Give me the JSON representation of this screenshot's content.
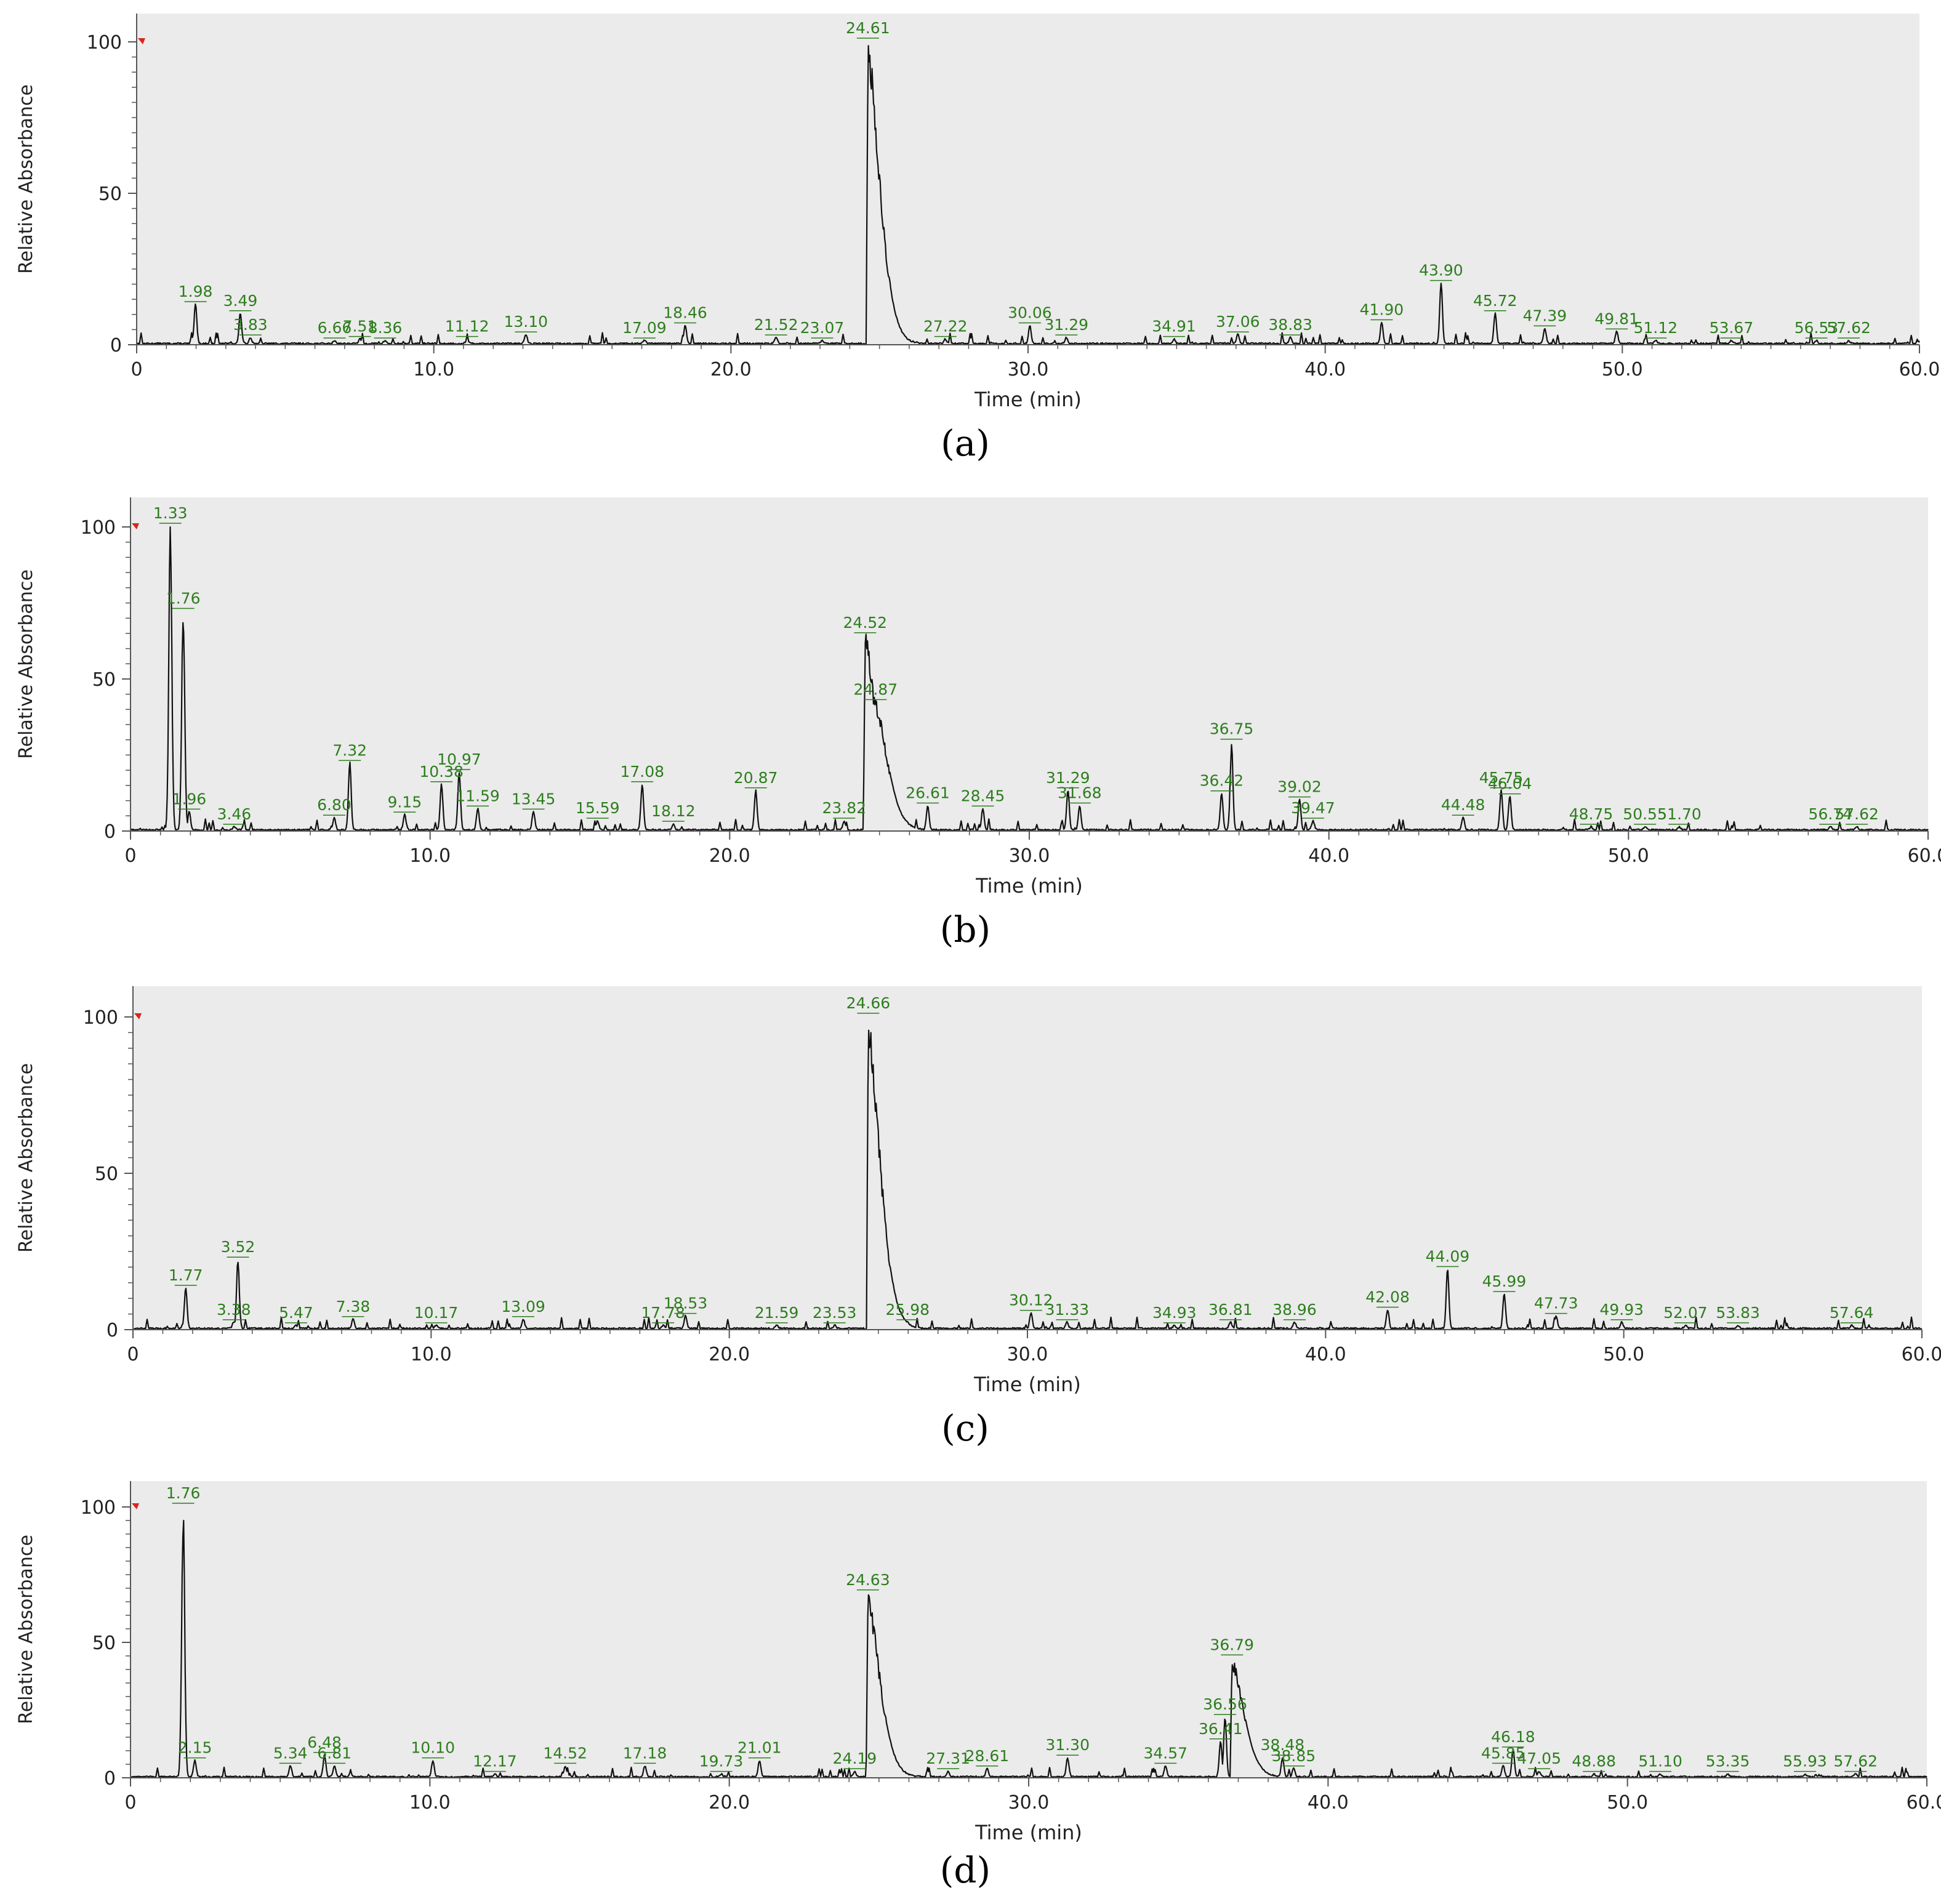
{
  "chart_data": [
    {
      "type": "line",
      "caption": "(a)",
      "xlabel": "Time (min)",
      "ylabel": "Relative Absorbance",
      "xlim": [
        0,
        60
      ],
      "ylim": [
        0,
        100
      ],
      "xticks": [
        "0",
        "10.0",
        "20.0",
        "30.0",
        "40.0",
        "50.0",
        "60.0"
      ],
      "yticks": [
        "0",
        "50",
        "100"
      ],
      "grid": false,
      "peaks": [
        {
          "label": "1.98",
          "x": 1.98,
          "y": 13
        },
        {
          "label": "3.49",
          "x": 3.49,
          "y": 10
        },
        {
          "label": "3.83",
          "x": 3.83,
          "y": 2
        },
        {
          "label": "6.66",
          "x": 6.66,
          "y": 1
        },
        {
          "label": "7.51",
          "x": 7.51,
          "y": 1.5
        },
        {
          "label": "8.36",
          "x": 8.36,
          "y": 1
        },
        {
          "label": "11.12",
          "x": 11.12,
          "y": 1.5
        },
        {
          "label": "13.10",
          "x": 13.1,
          "y": 3
        },
        {
          "label": "17.09",
          "x": 17.09,
          "y": 1
        },
        {
          "label": "18.46",
          "x": 18.46,
          "y": 6
        },
        {
          "label": "21.52",
          "x": 21.52,
          "y": 2
        },
        {
          "label": "23.07",
          "x": 23.07,
          "y": 1
        },
        {
          "label": "24.61",
          "x": 24.61,
          "y": 100
        },
        {
          "label": "27.22",
          "x": 27.22,
          "y": 1.5
        },
        {
          "label": "30.06",
          "x": 30.06,
          "y": 6
        },
        {
          "label": "31.29",
          "x": 31.29,
          "y": 2
        },
        {
          "label": "34.91",
          "x": 34.91,
          "y": 1.5
        },
        {
          "label": "37.06",
          "x": 37.06,
          "y": 3
        },
        {
          "label": "38.83",
          "x": 38.83,
          "y": 2
        },
        {
          "label": "41.90",
          "x": 41.9,
          "y": 7
        },
        {
          "label": "43.90",
          "x": 43.9,
          "y": 20
        },
        {
          "label": "45.72",
          "x": 45.72,
          "y": 10
        },
        {
          "label": "47.39",
          "x": 47.39,
          "y": 5
        },
        {
          "label": "49.81",
          "x": 49.81,
          "y": 4
        },
        {
          "label": "51.12",
          "x": 51.12,
          "y": 1
        },
        {
          "label": "53.67",
          "x": 53.67,
          "y": 1
        },
        {
          "label": "56.53",
          "x": 56.53,
          "y": 1
        },
        {
          "label": "57.62",
          "x": 57.62,
          "y": 1
        }
      ]
    },
    {
      "type": "line",
      "caption": "(b)",
      "xlabel": "Time (min)",
      "ylabel": "Relative Absorbance",
      "xlim": [
        0,
        60
      ],
      "ylim": [
        0,
        100
      ],
      "xticks": [
        "0",
        "10.0",
        "20.0",
        "30.0",
        "40.0",
        "50.0",
        "60.0"
      ],
      "yticks": [
        "0",
        "50",
        "100"
      ],
      "grid": false,
      "peaks": [
        {
          "label": "1.33",
          "x": 1.33,
          "y": 100
        },
        {
          "label": "1.76",
          "x": 1.76,
          "y": 72
        },
        {
          "label": "1.96",
          "x": 1.96,
          "y": 6
        },
        {
          "label": "3.46",
          "x": 3.46,
          "y": 1
        },
        {
          "label": "6.80",
          "x": 6.8,
          "y": 4
        },
        {
          "label": "7.32",
          "x": 7.32,
          "y": 22
        },
        {
          "label": "9.15",
          "x": 9.15,
          "y": 5
        },
        {
          "label": "10.38",
          "x": 10.38,
          "y": 15
        },
        {
          "label": "10.97",
          "x": 10.97,
          "y": 19
        },
        {
          "label": "11.59",
          "x": 11.59,
          "y": 7
        },
        {
          "label": "13.45",
          "x": 13.45,
          "y": 6
        },
        {
          "label": "15.59",
          "x": 15.59,
          "y": 3
        },
        {
          "label": "17.08",
          "x": 17.08,
          "y": 15
        },
        {
          "label": "18.12",
          "x": 18.12,
          "y": 2
        },
        {
          "label": "20.87",
          "x": 20.87,
          "y": 13
        },
        {
          "label": "23.82",
          "x": 23.82,
          "y": 3
        },
        {
          "label": "24.52",
          "x": 24.52,
          "y": 64
        },
        {
          "label": "24.87",
          "x": 24.87,
          "y": 42
        },
        {
          "label": "26.61",
          "x": 26.61,
          "y": 8
        },
        {
          "label": "28.45",
          "x": 28.45,
          "y": 7
        },
        {
          "label": "31.29",
          "x": 31.29,
          "y": 13
        },
        {
          "label": "31.68",
          "x": 31.68,
          "y": 8
        },
        {
          "label": "36.42",
          "x": 36.42,
          "y": 12
        },
        {
          "label": "36.75",
          "x": 36.75,
          "y": 29
        },
        {
          "label": "39.02",
          "x": 39.02,
          "y": 10
        },
        {
          "label": "39.47",
          "x": 39.47,
          "y": 3
        },
        {
          "label": "44.48",
          "x": 44.48,
          "y": 4
        },
        {
          "label": "45.75",
          "x": 45.75,
          "y": 13
        },
        {
          "label": "46.04",
          "x": 46.04,
          "y": 11
        },
        {
          "label": "48.75",
          "x": 48.75,
          "y": 1
        },
        {
          "label": "50.55",
          "x": 50.55,
          "y": 1
        },
        {
          "label": "51.70",
          "x": 51.7,
          "y": 1
        },
        {
          "label": "56.74",
          "x": 56.74,
          "y": 1
        },
        {
          "label": "57.62",
          "x": 57.62,
          "y": 1
        }
      ]
    },
    {
      "type": "line",
      "caption": "(c)",
      "xlabel": "Time (min)",
      "ylabel": "Relative Absorbance",
      "xlim": [
        0,
        60
      ],
      "ylim": [
        0,
        100
      ],
      "xticks": [
        "0",
        "10.0",
        "20.0",
        "30.0",
        "40.0",
        "50.0",
        "60.0"
      ],
      "yticks": [
        "0",
        "50",
        "100"
      ],
      "grid": false,
      "peaks": [
        {
          "label": "1.77",
          "x": 1.77,
          "y": 13
        },
        {
          "label": "3.38",
          "x": 3.38,
          "y": 2
        },
        {
          "label": "3.52",
          "x": 3.52,
          "y": 22
        },
        {
          "label": "5.47",
          "x": 5.47,
          "y": 1
        },
        {
          "label": "7.38",
          "x": 7.38,
          "y": 3
        },
        {
          "label": "10.17",
          "x": 10.17,
          "y": 1
        },
        {
          "label": "13.09",
          "x": 13.09,
          "y": 3
        },
        {
          "label": "17.78",
          "x": 17.78,
          "y": 1
        },
        {
          "label": "18.53",
          "x": 18.53,
          "y": 4
        },
        {
          "label": "21.59",
          "x": 21.59,
          "y": 1
        },
        {
          "label": "23.53",
          "x": 23.53,
          "y": 1
        },
        {
          "label": "24.66",
          "x": 24.66,
          "y": 100
        },
        {
          "label": "25.98",
          "x": 25.98,
          "y": 2
        },
        {
          "label": "30.12",
          "x": 30.12,
          "y": 5
        },
        {
          "label": "31.33",
          "x": 31.33,
          "y": 2
        },
        {
          "label": "34.93",
          "x": 34.93,
          "y": 1
        },
        {
          "label": "36.81",
          "x": 36.81,
          "y": 2
        },
        {
          "label": "38.96",
          "x": 38.96,
          "y": 2
        },
        {
          "label": "42.08",
          "x": 42.08,
          "y": 6
        },
        {
          "label": "44.09",
          "x": 44.09,
          "y": 19
        },
        {
          "label": "45.99",
          "x": 45.99,
          "y": 11
        },
        {
          "label": "47.73",
          "x": 47.73,
          "y": 4
        },
        {
          "label": "49.93",
          "x": 49.93,
          "y": 2
        },
        {
          "label": "52.07",
          "x": 52.07,
          "y": 1
        },
        {
          "label": "53.83",
          "x": 53.83,
          "y": 1
        },
        {
          "label": "57.64",
          "x": 57.64,
          "y": 1
        }
      ]
    },
    {
      "type": "line",
      "caption": "(d)",
      "xlabel": "Time (min)",
      "ylabel": "Relative Absorbance",
      "xlim": [
        0,
        60
      ],
      "ylim": [
        0,
        100
      ],
      "xticks": [
        "0",
        "10.0",
        "20.0",
        "30.0",
        "40.0",
        "50.0",
        "60.0"
      ],
      "yticks": [
        "0",
        "50",
        "100"
      ],
      "grid": false,
      "peaks": [
        {
          "label": "1.76",
          "x": 1.76,
          "y": 100
        },
        {
          "label": "2.15",
          "x": 2.15,
          "y": 6
        },
        {
          "label": "5.34",
          "x": 5.34,
          "y": 4
        },
        {
          "label": "6.48",
          "x": 6.48,
          "y": 8
        },
        {
          "label": "6.81",
          "x": 6.81,
          "y": 4
        },
        {
          "label": "10.10",
          "x": 10.1,
          "y": 6
        },
        {
          "label": "12.17",
          "x": 12.17,
          "y": 1
        },
        {
          "label": "14.52",
          "x": 14.52,
          "y": 4
        },
        {
          "label": "17.18",
          "x": 17.18,
          "y": 4
        },
        {
          "label": "19.73",
          "x": 19.73,
          "y": 1
        },
        {
          "label": "21.01",
          "x": 21.01,
          "y": 6
        },
        {
          "label": "24.19",
          "x": 24.19,
          "y": 2
        },
        {
          "label": "24.63",
          "x": 24.63,
          "y": 68
        },
        {
          "label": "27.31",
          "x": 27.31,
          "y": 2
        },
        {
          "label": "28.61",
          "x": 28.61,
          "y": 3
        },
        {
          "label": "31.30",
          "x": 31.3,
          "y": 7
        },
        {
          "label": "34.57",
          "x": 34.57,
          "y": 4
        },
        {
          "label": "36.41",
          "x": 36.41,
          "y": 13
        },
        {
          "label": "36.56",
          "x": 36.56,
          "y": 22
        },
        {
          "label": "36.79",
          "x": 36.79,
          "y": 44
        },
        {
          "label": "38.48",
          "x": 38.48,
          "y": 7
        },
        {
          "label": "38.85",
          "x": 38.85,
          "y": 3
        },
        {
          "label": "45.85",
          "x": 45.85,
          "y": 4
        },
        {
          "label": "46.18",
          "x": 46.18,
          "y": 10
        },
        {
          "label": "47.05",
          "x": 47.05,
          "y": 2
        },
        {
          "label": "48.88",
          "x": 48.88,
          "y": 1
        },
        {
          "label": "51.10",
          "x": 51.1,
          "y": 1
        },
        {
          "label": "53.35",
          "x": 53.35,
          "y": 1
        },
        {
          "label": "55.93",
          "x": 55.93,
          "y": 1
        },
        {
          "label": "57.62",
          "x": 57.62,
          "y": 1
        }
      ]
    }
  ],
  "colors": {
    "panel_background": "#ebebeb",
    "trace": "#111111",
    "peak_label": "#2e7d1e",
    "marker": "#d9261c"
  }
}
